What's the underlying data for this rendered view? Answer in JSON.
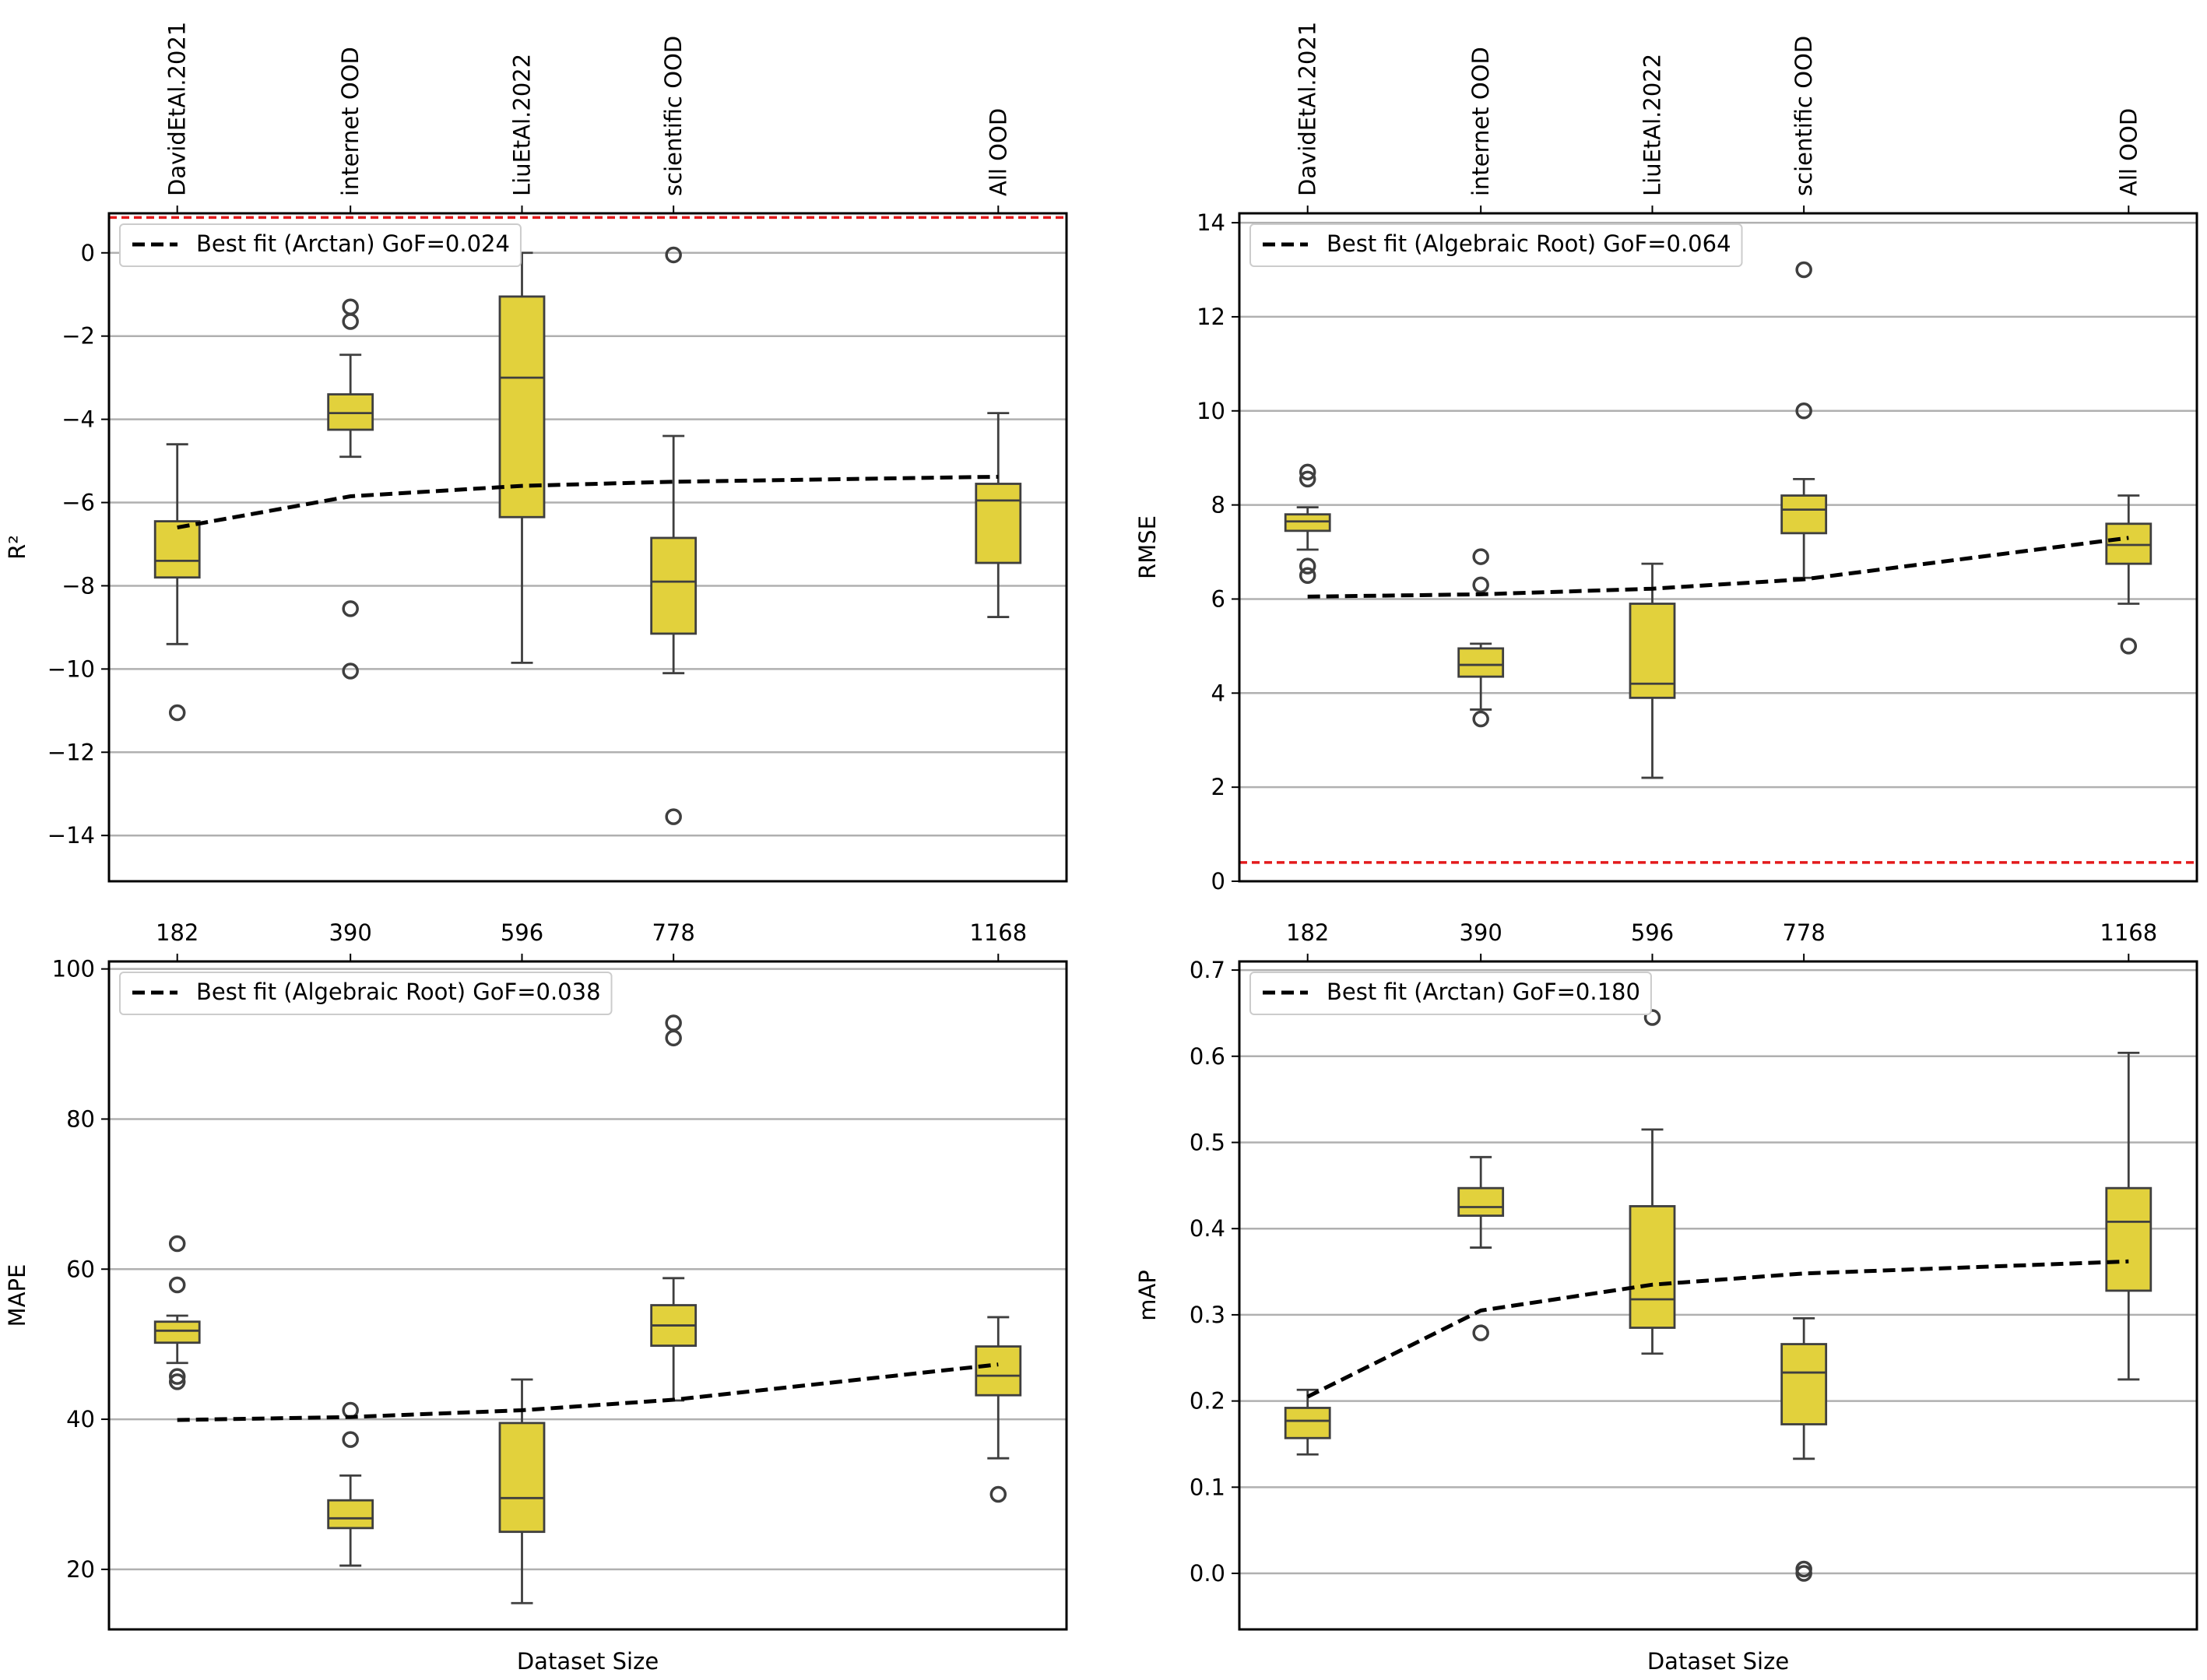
{
  "colors": {
    "box_fill": "#e2d13c",
    "box_edge": "#3f3f3f",
    "reference_line": "#e31a1c",
    "fit_line": "#000000",
    "grid": "#b0b0b0"
  },
  "chart_data": [
    {
      "id": "r2",
      "type": "box",
      "ylabel": "R²",
      "xlabel": "",
      "ylim": [
        -15.1,
        0.95
      ],
      "yticks": [
        0,
        -2,
        -4,
        -6,
        -8,
        -10,
        -12,
        -14
      ],
      "ytick_labels": [
        "0",
        "−2",
        "−4",
        "−6",
        "−8",
        "−10",
        "−12",
        "−14"
      ],
      "top_labels": [
        "DavidEtAl.2021",
        "internet OOD",
        "LiuEtAl.2022",
        "scientific OOD",
        "All OOD"
      ],
      "bottom_labels": [],
      "reference_line": 0.85,
      "legend": "Best fit (Arctan) GoF=0.024",
      "fit": {
        "form": "arctan",
        "x": [
          182,
          390,
          596,
          778,
          1168
        ],
        "y": [
          -6.6,
          -5.85,
          -5.6,
          -5.5,
          -5.38
        ]
      },
      "boxes": [
        {
          "x": 182,
          "whislo": -9.4,
          "q1": -7.8,
          "med": -7.4,
          "q3": -6.45,
          "whishi": -4.6,
          "fliers": [
            -11.05
          ]
        },
        {
          "x": 390,
          "whislo": -4.9,
          "q1": -4.25,
          "med": -3.85,
          "q3": -3.4,
          "whishi": -2.45,
          "fliers": [
            -1.3,
            -1.65,
            -8.55,
            -10.05
          ]
        },
        {
          "x": 596,
          "whislo": -9.85,
          "q1": -6.35,
          "med": -3.0,
          "q3": -1.05,
          "whishi": 0.0,
          "fliers": []
        },
        {
          "x": 778,
          "whislo": -10.1,
          "q1": -9.15,
          "med": -7.9,
          "q3": -6.85,
          "whishi": -4.4,
          "fliers": [
            -0.05,
            -13.55
          ]
        },
        {
          "x": 1168,
          "whislo": -8.75,
          "q1": -7.45,
          "med": -5.95,
          "q3": -5.55,
          "whishi": -3.85,
          "fliers": []
        }
      ]
    },
    {
      "id": "rmse",
      "type": "box",
      "ylabel": "RMSE",
      "xlabel": "",
      "ylim": [
        0,
        14.2
      ],
      "yticks": [
        0,
        2,
        4,
        6,
        8,
        10,
        12,
        14
      ],
      "ytick_labels": [
        "0",
        "2",
        "4",
        "6",
        "8",
        "10",
        "12",
        "14"
      ],
      "top_labels": [
        "DavidEtAl.2021",
        "internet OOD",
        "LiuEtAl.2022",
        "scientific OOD",
        "All OOD"
      ],
      "bottom_labels": [],
      "reference_line": 0.4,
      "legend": "Best fit (Algebraic Root) GoF=0.064",
      "fit": {
        "form": "algebraic_root",
        "x": [
          182,
          390,
          596,
          778,
          1168
        ],
        "y": [
          6.05,
          6.1,
          6.22,
          6.42,
          7.3
        ]
      },
      "boxes": [
        {
          "x": 182,
          "whislo": 7.05,
          "q1": 7.45,
          "med": 7.65,
          "q3": 7.8,
          "whishi": 7.95,
          "fliers": [
            8.7,
            8.55,
            6.7,
            6.5
          ]
        },
        {
          "x": 390,
          "whislo": 3.65,
          "q1": 4.35,
          "med": 4.6,
          "q3": 4.95,
          "whishi": 5.05,
          "fliers": [
            6.9,
            6.3,
            3.45
          ]
        },
        {
          "x": 596,
          "whislo": 2.2,
          "q1": 3.9,
          "med": 4.2,
          "q3": 5.9,
          "whishi": 6.75,
          "fliers": []
        },
        {
          "x": 778,
          "whislo": 6.45,
          "q1": 7.4,
          "med": 7.9,
          "q3": 8.2,
          "whishi": 8.55,
          "fliers": [
            13.0,
            10.0
          ]
        },
        {
          "x": 1168,
          "whislo": 5.9,
          "q1": 6.75,
          "med": 7.15,
          "q3": 7.6,
          "whishi": 8.2,
          "fliers": [
            5.0
          ]
        }
      ]
    },
    {
      "id": "mape",
      "type": "box",
      "ylabel": "MAPE",
      "xlabel": "Dataset Size",
      "ylim": [
        12,
        101
      ],
      "yticks": [
        20,
        40,
        60,
        80,
        100
      ],
      "ytick_labels": [
        "20",
        "40",
        "60",
        "80",
        "100"
      ],
      "top_labels": [],
      "bottom_labels": [],
      "categories": [
        "182",
        "390",
        "596",
        "778",
        "1168"
      ],
      "reference_line": null,
      "legend": "Best fit (Algebraic Root) GoF=0.038",
      "fit": {
        "form": "algebraic_root",
        "x": [
          182,
          390,
          596,
          778,
          1168
        ],
        "y": [
          39.9,
          40.3,
          41.2,
          42.6,
          47.3
        ]
      },
      "boxes": [
        {
          "x": 182,
          "whislo": 47.5,
          "q1": 50.2,
          "med": 51.8,
          "q3": 53.0,
          "whishi": 53.8,
          "fliers": [
            63.4,
            57.9,
            45.7,
            45.0
          ]
        },
        {
          "x": 390,
          "whislo": 20.5,
          "q1": 25.5,
          "med": 26.8,
          "q3": 29.2,
          "whishi": 32.5,
          "fliers": [
            41.2,
            37.3
          ]
        },
        {
          "x": 596,
          "whislo": 15.5,
          "q1": 25.0,
          "med": 29.5,
          "q3": 39.5,
          "whishi": 45.3,
          "fliers": []
        },
        {
          "x": 778,
          "whislo": 42.5,
          "q1": 49.8,
          "med": 52.5,
          "q3": 55.2,
          "whishi": 58.8,
          "fliers": [
            92.8,
            90.8
          ]
        },
        {
          "x": 1168,
          "whislo": 34.8,
          "q1": 43.2,
          "med": 45.8,
          "q3": 49.7,
          "whishi": 53.6,
          "fliers": [
            30.0
          ]
        }
      ]
    },
    {
      "id": "map",
      "type": "box",
      "ylabel": "mAP",
      "xlabel": "Dataset Size",
      "ylim": [
        -0.065,
        0.71
      ],
      "yticks": [
        0.0,
        0.1,
        0.2,
        0.3,
        0.4,
        0.5,
        0.6,
        0.7
      ],
      "ytick_labels": [
        "0.0",
        "0.1",
        "0.2",
        "0.3",
        "0.4",
        "0.5",
        "0.6",
        "0.7"
      ],
      "top_labels": [],
      "bottom_labels": [],
      "categories": [
        "182",
        "390",
        "596",
        "778",
        "1168"
      ],
      "reference_line": null,
      "legend": "Best fit (Arctan) GoF=0.180",
      "fit": {
        "form": "arctan",
        "x": [
          182,
          390,
          596,
          778,
          1168
        ],
        "y": [
          0.205,
          0.305,
          0.335,
          0.348,
          0.362
        ]
      },
      "boxes": [
        {
          "x": 182,
          "whislo": 0.138,
          "q1": 0.157,
          "med": 0.177,
          "q3": 0.192,
          "whishi": 0.213,
          "fliers": []
        },
        {
          "x": 390,
          "whislo": 0.378,
          "q1": 0.415,
          "med": 0.425,
          "q3": 0.447,
          "whishi": 0.483,
          "fliers": [
            0.279
          ]
        },
        {
          "x": 596,
          "whislo": 0.255,
          "q1": 0.285,
          "med": 0.318,
          "q3": 0.426,
          "whishi": 0.515,
          "fliers": [
            0.645
          ]
        },
        {
          "x": 778,
          "whislo": 0.133,
          "q1": 0.173,
          "med": 0.233,
          "q3": 0.266,
          "whishi": 0.296,
          "fliers": [
            0.005,
            0.0
          ]
        },
        {
          "x": 1168,
          "whislo": 0.225,
          "q1": 0.328,
          "med": 0.408,
          "q3": 0.447,
          "whishi": 0.604,
          "fliers": []
        }
      ]
    }
  ]
}
